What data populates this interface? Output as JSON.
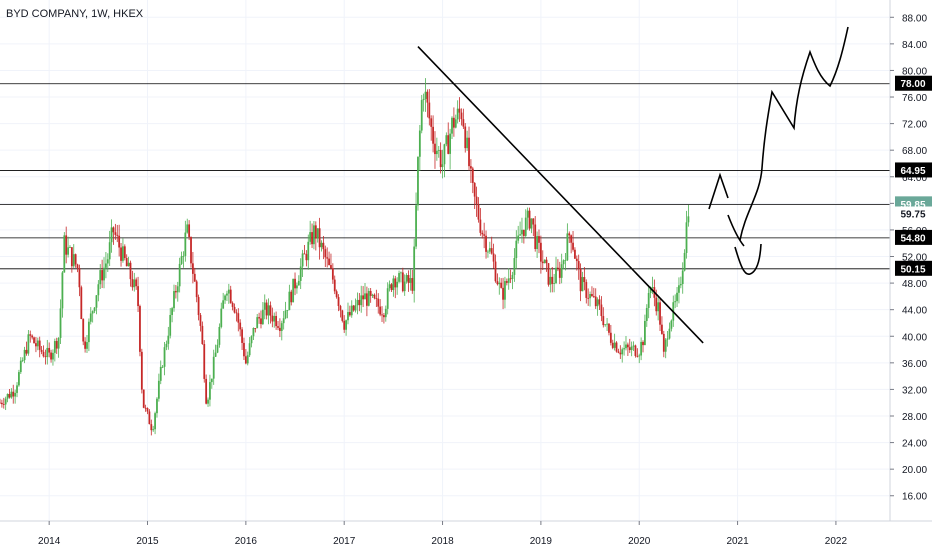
{
  "chart_data": {
    "type": "candlestick",
    "title": "BYD COMPANY, 1W, HKEX",
    "y_ticks": [
      16,
      20,
      24,
      28,
      32,
      36,
      40,
      44,
      48,
      52,
      56,
      60,
      64,
      68,
      72,
      76,
      80,
      84,
      88
    ],
    "y_tick_labels": [
      "16.00",
      "20.00",
      "24.00",
      "28.00",
      "32.00",
      "36.00",
      "40.00",
      "44.00",
      "48.00",
      "52.00",
      "56.00",
      "60.00",
      "64.00",
      "68.00",
      "72.00",
      "76.00",
      "80.00",
      "84.00",
      "88.00"
    ],
    "x_ticks": [
      2014,
      2015,
      2016,
      2017,
      2018,
      2019,
      2020,
      2021,
      2022
    ],
    "x_tick_labels": [
      "2014",
      "2015",
      "2016",
      "2017",
      "2018",
      "2019",
      "2020",
      "2021",
      "2022"
    ],
    "ylim": [
      12.2,
      90.6
    ],
    "xlim": [
      2013.5,
      2022.55
    ],
    "horizontal_levels": [
      {
        "value": 78.0,
        "label": "78.00",
        "badge_color": "#000000"
      },
      {
        "value": 64.95,
        "label": "64.95",
        "badge_color": "#000000"
      },
      {
        "value": 59.85,
        "label": "59.85",
        "badge_color": "#6aa899"
      },
      {
        "value": 54.8,
        "label": "54.80",
        "badge_color": "#000000"
      },
      {
        "value": 50.15,
        "label": "50.15",
        "badge_color": "#000000"
      }
    ],
    "extra_price_labels": [
      {
        "value": 59.75,
        "label": "59.75",
        "badge_color": "#ffffff"
      }
    ],
    "trendline": {
      "start": [
        2017.75,
        83.6
      ],
      "end": [
        2020.65,
        39.0
      ]
    },
    "candles_ohlc_keypoints": [
      [
        2013.5,
        30
      ],
      [
        2013.65,
        32
      ],
      [
        2013.8,
        40
      ],
      [
        2013.9,
        38
      ],
      [
        2014.0,
        37
      ],
      [
        2014.1,
        40
      ],
      [
        2014.15,
        54
      ],
      [
        2014.3,
        50
      ],
      [
        2014.35,
        38
      ],
      [
        2014.5,
        48
      ],
      [
        2014.6,
        52
      ],
      [
        2014.65,
        56
      ],
      [
        2014.8,
        50
      ],
      [
        2014.9,
        46
      ],
      [
        2014.95,
        30
      ],
      [
        2015.05,
        26
      ],
      [
        2015.15,
        36
      ],
      [
        2015.3,
        48
      ],
      [
        2015.4,
        56
      ],
      [
        2015.5,
        46
      ],
      [
        2015.55,
        40
      ],
      [
        2015.6,
        30
      ],
      [
        2015.7,
        38
      ],
      [
        2015.8,
        48
      ],
      [
        2015.9,
        44
      ],
      [
        2016.0,
        36
      ],
      [
        2016.1,
        42
      ],
      [
        2016.2,
        44
      ],
      [
        2016.35,
        42
      ],
      [
        2016.5,
        48
      ],
      [
        2016.6,
        52
      ],
      [
        2016.7,
        56
      ],
      [
        2016.8,
        52
      ],
      [
        2016.9,
        48
      ],
      [
        2017.0,
        42
      ],
      [
        2017.1,
        44
      ],
      [
        2017.2,
        46
      ],
      [
        2017.4,
        44
      ],
      [
        2017.5,
        49
      ],
      [
        2017.6,
        48
      ],
      [
        2017.7,
        48
      ],
      [
        2017.75,
        66
      ],
      [
        2017.8,
        78
      ],
      [
        2017.9,
        70
      ],
      [
        2018.0,
        66
      ],
      [
        2018.1,
        72
      ],
      [
        2018.2,
        74
      ],
      [
        2018.3,
        62
      ],
      [
        2018.4,
        56
      ],
      [
        2018.5,
        52
      ],
      [
        2018.6,
        46
      ],
      [
        2018.7,
        50
      ],
      [
        2018.8,
        56
      ],
      [
        2018.9,
        58
      ],
      [
        2018.95,
        54
      ],
      [
        2019.1,
        48
      ],
      [
        2019.2,
        50
      ],
      [
        2019.3,
        56
      ],
      [
        2019.4,
        48
      ],
      [
        2019.5,
        46
      ],
      [
        2019.6,
        44
      ],
      [
        2019.7,
        40
      ],
      [
        2019.8,
        38
      ],
      [
        2019.9,
        38
      ],
      [
        2020.0,
        38
      ],
      [
        2020.05,
        40
      ],
      [
        2020.1,
        48
      ],
      [
        2020.2,
        44
      ],
      [
        2020.25,
        37
      ],
      [
        2020.3,
        42
      ],
      [
        2020.4,
        46
      ],
      [
        2020.45,
        52
      ],
      [
        2020.5,
        59.75
      ]
    ]
  }
}
